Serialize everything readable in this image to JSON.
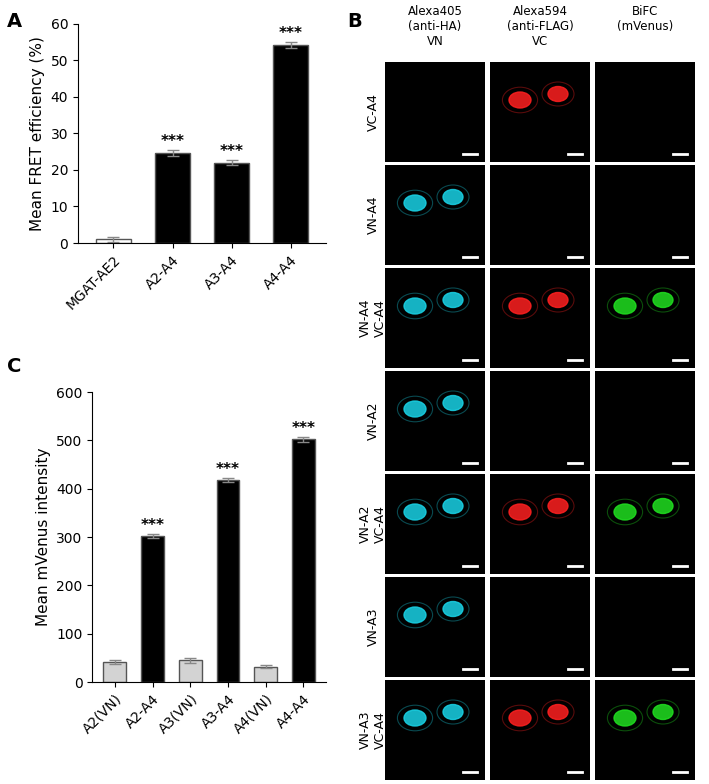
{
  "chart_data": [
    {
      "panel_label": "A",
      "type": "bar",
      "y_label": "Mean FRET efficiency (%)",
      "categories": [
        "MGAT-AE2",
        "A2-A4",
        "A3-A4",
        "A4-A4"
      ],
      "values": [
        1,
        24.5,
        22,
        54.2
      ],
      "errors": [
        0.7,
        0.8,
        0.6,
        0.8
      ],
      "colors": [
        "#ffffff",
        "#000000",
        "#000000",
        "#000000"
      ],
      "annotations": [
        null,
        "***",
        "***",
        "***"
      ],
      "ylim": [
        0,
        60
      ],
      "yticks": [
        0,
        10,
        20,
        30,
        40,
        50,
        60
      ]
    },
    {
      "panel_label": "C",
      "type": "bar",
      "y_label": "Mean mVenus intensity",
      "categories": [
        "A2(VN)",
        "A2-A4",
        "A3(VN)",
        "A3-A4",
        "A4(VN)",
        "A4-A4"
      ],
      "values": [
        42,
        302,
        45,
        418,
        32,
        502
      ],
      "errors": [
        4,
        4,
        5,
        4,
        3,
        5
      ],
      "colors": [
        "#d3d3d3",
        "#000000",
        "#d3d3d3",
        "#000000",
        "#d3d3d3",
        "#000000"
      ],
      "annotations": [
        null,
        "***",
        null,
        "***",
        null,
        "***"
      ],
      "ylim": [
        0,
        600
      ],
      "yticks": [
        0,
        100,
        200,
        300,
        400,
        500,
        600
      ]
    }
  ],
  "image_grid": {
    "panel_label": "B",
    "channels": [
      {
        "header": "Alexa405\n(anti-HA)\nVN",
        "color": "#19d3e6"
      },
      {
        "header": "Alexa594\n(anti-FLAG)\nVC",
        "color": "#ff2020"
      },
      {
        "header": "BiFC\n(mVenus)",
        "color": "#20e020"
      }
    ],
    "rows": [
      {
        "label": "VC-A4",
        "signal": [
          false,
          true,
          false
        ]
      },
      {
        "label": "VN-A4",
        "signal": [
          true,
          false,
          false
        ]
      },
      {
        "label": "VN-A4\nVC-A4",
        "signal": [
          true,
          true,
          true
        ]
      },
      {
        "label": "VN-A2",
        "signal": [
          true,
          false,
          false
        ]
      },
      {
        "label": "VN-A2\nVC-A4",
        "signal": [
          true,
          true,
          true
        ]
      },
      {
        "label": "VN-A3",
        "signal": [
          true,
          false,
          false
        ]
      },
      {
        "label": "VN-A3\nVC-A4",
        "signal": [
          true,
          true,
          true
        ]
      }
    ]
  }
}
